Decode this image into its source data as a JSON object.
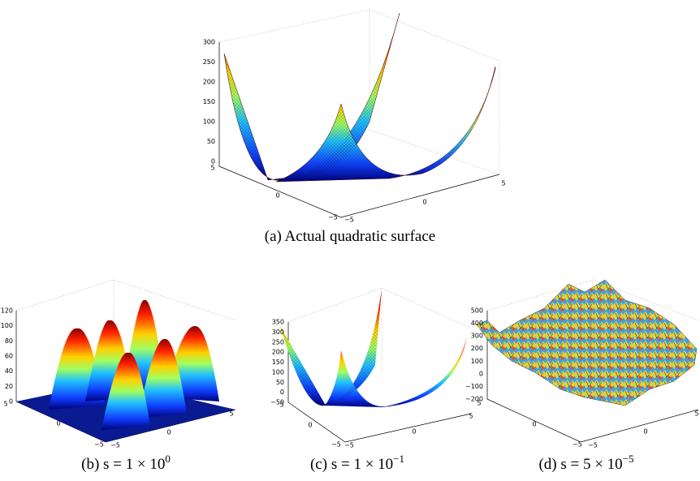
{
  "panels": [
    {
      "caption": {
        "label": "(a)",
        "text": "Actual quadratic surface"
      },
      "z_ticks": [
        "300",
        "250",
        "200",
        "150",
        "100",
        "50",
        "0"
      ],
      "x_ticks_left": [
        "5",
        "0",
        "−5"
      ],
      "x_ticks_right": [
        "−5",
        "0",
        "5"
      ]
    },
    {
      "caption": {
        "label": "(b)",
        "text": "s = 1 × 10",
        "exponent": "0"
      },
      "z_ticks": [
        "120",
        "100",
        "80",
        "60",
        "40",
        "20",
        "0"
      ],
      "x_ticks_left": [
        "5",
        "0",
        "−5"
      ],
      "x_ticks_right": [
        "−5",
        "0",
        "5"
      ]
    },
    {
      "caption": {
        "label": "(c)",
        "text": "s = 1 × 10",
        "exponent": "−1"
      },
      "z_ticks": [
        "350",
        "300",
        "250",
        "200",
        "150",
        "100",
        "50",
        "0",
        "−50"
      ],
      "x_ticks_left": [
        "5",
        "0",
        "−5"
      ],
      "x_ticks_right": [
        "−5",
        "0",
        "5"
      ]
    },
    {
      "caption": {
        "label": "(d)",
        "text": "s = 5 × 10",
        "exponent": "−5"
      },
      "z_ticks": [
        "500",
        "400",
        "300",
        "200",
        "100",
        "0",
        "−100",
        "−200"
      ],
      "x_ticks_left": [
        "5",
        "0",
        "−5"
      ],
      "x_ticks_right": [
        "−5",
        "0",
        "5"
      ]
    }
  ]
}
